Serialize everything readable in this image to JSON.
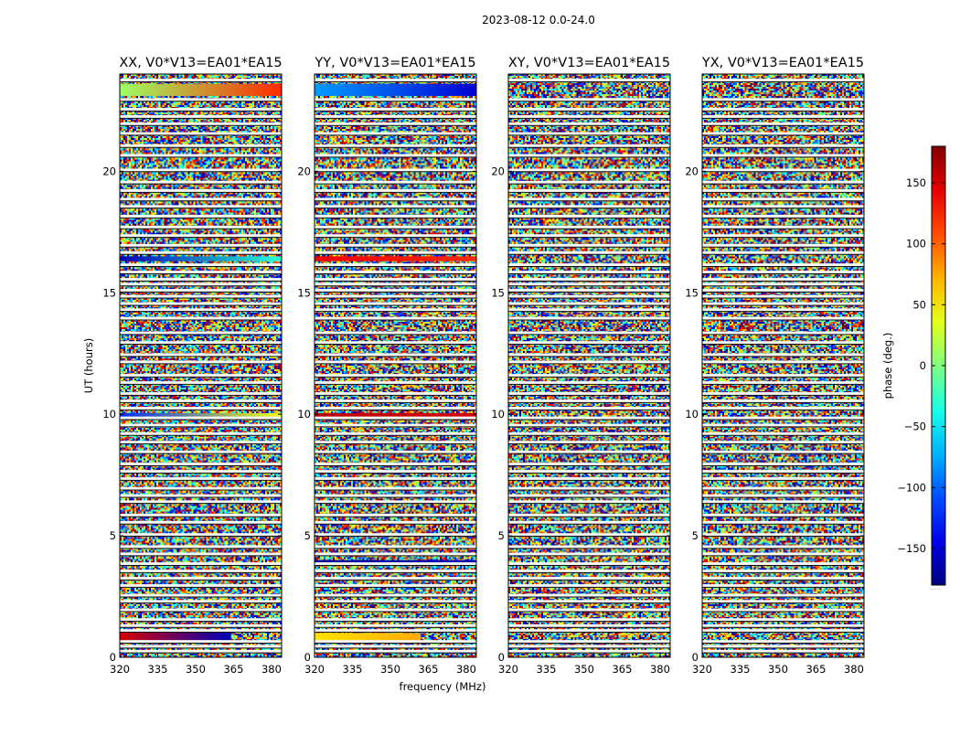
{
  "figure": {
    "suptitle": "2023-08-12 0.0-24.0",
    "xlabel": "frequency (MHz)",
    "ylabel": "UT (hours)",
    "footnote": "......"
  },
  "chart_data": {
    "type": "heatmap",
    "title": "2023-08-12 0.0-24.0",
    "xlabel": "frequency (MHz)",
    "ylabel": "UT (hours)",
    "xlim": [
      320,
      384
    ],
    "ylim": [
      0,
      24
    ],
    "xticks": [
      320,
      335,
      350,
      365,
      380
    ],
    "yticks": [
      0,
      5,
      10,
      15,
      20
    ],
    "panels": [
      {
        "title": "XX, V0*V13=EA01*EA15",
        "polarization": "XX"
      },
      {
        "title": "YY, V0*V13=EA01*EA15",
        "polarization": "YY"
      },
      {
        "title": "XY, V0*V13=EA01*EA15",
        "polarization": "XY"
      },
      {
        "title": "YX, V0*V13=EA01*EA15",
        "polarization": "YX"
      }
    ],
    "colorbar": {
      "label": "phase (deg.)",
      "range": [
        -180,
        180
      ],
      "ticks": [
        -150,
        -100,
        -50,
        0,
        50,
        100,
        150
      ],
      "colormap": "jet"
    },
    "coherent_bands": [
      {
        "panel": "XX",
        "ut_start": 23.1,
        "ut_end": 23.6,
        "freq_start": 320,
        "freq_end": 384,
        "phase_start": 10,
        "phase_end": 120
      },
      {
        "panel": "XX",
        "ut_start": 16.3,
        "ut_end": 16.5,
        "freq_start": 320,
        "freq_end": 384,
        "phase_start": -160,
        "phase_end": -30
      },
      {
        "panel": "XX",
        "ut_start": 9.9,
        "ut_end": 10.05,
        "freq_start": 320,
        "freq_end": 384,
        "phase_start": -120,
        "phase_end": 40
      },
      {
        "panel": "XX",
        "ut_start": 0.7,
        "ut_end": 1.1,
        "freq_start": 320,
        "freq_end": 364,
        "phase_start": 150,
        "phase_end": -160
      },
      {
        "panel": "YY",
        "ut_start": 23.1,
        "ut_end": 23.6,
        "freq_start": 320,
        "freq_end": 384,
        "phase_start": -80,
        "phase_end": -150
      },
      {
        "panel": "YY",
        "ut_start": 16.3,
        "ut_end": 16.5,
        "freq_start": 320,
        "freq_end": 384,
        "phase_start": 140,
        "phase_end": 120
      },
      {
        "panel": "YY",
        "ut_start": 9.9,
        "ut_end": 10.05,
        "freq_start": 320,
        "freq_end": 384,
        "phase_start": 160,
        "phase_end": 150
      },
      {
        "panel": "YY",
        "ut_start": 3.9,
        "ut_end": 4.0,
        "freq_start": 320,
        "freq_end": 384,
        "phase_start": -170,
        "phase_end": -160
      },
      {
        "panel": "YY",
        "ut_start": 0.7,
        "ut_end": 1.0,
        "freq_start": 320,
        "freq_end": 362,
        "phase_start": 55,
        "phase_end": 75
      }
    ],
    "gaps_ut": [
      0.25,
      0.45,
      0.65,
      1.1,
      1.3,
      1.55,
      1.95,
      2.3,
      2.55,
      2.95,
      3.25,
      3.55,
      3.85,
      4.25,
      4.55,
      5.05,
      5.55,
      5.85,
      6.4,
      6.65,
      6.95,
      7.35,
      7.65,
      7.95,
      8.45,
      8.85,
      9.2,
      9.55,
      9.85,
      10.25,
      10.55,
      10.85,
      11.3,
      11.6,
      12.15,
      12.45,
      12.95,
      13.35,
      13.95,
      14.3,
      14.55,
      14.85,
      15.1,
      15.35,
      15.55,
      15.85,
      16.15,
      16.65,
      16.95,
      17.35,
      17.7,
      18.15,
      18.55,
      18.85,
      19.2,
      19.55,
      20.05,
      20.65,
      21.05,
      21.55,
      21.95,
      22.25,
      22.55,
      22.95,
      23.75
    ]
  }
}
